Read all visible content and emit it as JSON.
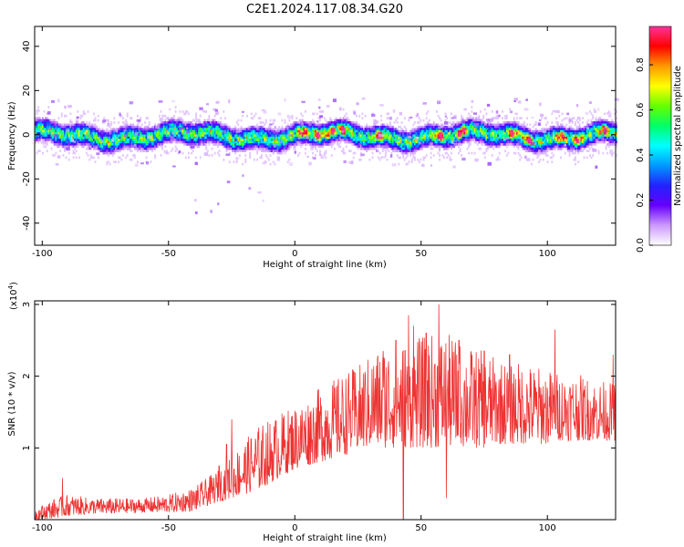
{
  "figure": {
    "title": "C2E1.2024.117.08.34.G20"
  },
  "chart_data": [
    {
      "type": "heatmap",
      "xlabel": "Height of straight line (km)",
      "ylabel": "Frequency (Hz)",
      "xlim": [
        -103,
        127
      ],
      "ylim": [
        -50,
        49
      ],
      "x_ticks": [
        -100,
        -50,
        0,
        50,
        100
      ],
      "y_ticks": [
        -40,
        -20,
        0,
        20,
        40
      ],
      "colorbar": {
        "label": "Normalized spectral amplitude",
        "range": [
          0,
          0.97
        ],
        "ticks": [
          0.0,
          0.2,
          0.4,
          0.6,
          0.8
        ],
        "colormap": [
          "#ffffff",
          "#cc99ff",
          "#6600ff",
          "#2222ff",
          "#0099ff",
          "#00ffff",
          "#00ff66",
          "#66ff00",
          "#ffff00",
          "#ff9900",
          "#ff0000",
          "#ff3399"
        ]
      },
      "signal": {
        "center_frequency": 0,
        "band_halfwidth_hz": 5,
        "scatter_extent_hz": [
          -40,
          17
        ],
        "hotspots_x": [
          3,
          9,
          14,
          19,
          33,
          57,
          66,
          86,
          92,
          105,
          112,
          122
        ]
      }
    },
    {
      "type": "line",
      "xlabel": "Height of straight line (km)",
      "ylabel": "SNR (10 * v/v)",
      "y_multiplier": "(x10",
      "y_multiplier_exp": "4",
      "y_multiplier_close": ")",
      "xlim": [
        -103,
        127
      ],
      "ylim": [
        0,
        3.05
      ],
      "x_ticks": [
        -100,
        -50,
        0,
        50,
        100
      ],
      "y_ticks": [
        1,
        2,
        3
      ],
      "color": "#ee3333",
      "series": [
        {
          "x": [
            -103,
            -95,
            -90,
            -80,
            -70,
            -60,
            -50,
            -40,
            -30,
            -25,
            -20,
            -15,
            -10,
            -5,
            0,
            5,
            10,
            15,
            20,
            25,
            30,
            35,
            40,
            45,
            50,
            55,
            60,
            65,
            70,
            75,
            80,
            85,
            90,
            95,
            100,
            105,
            110,
            115,
            120,
            127
          ],
          "y_low": [
            0.0,
            0.02,
            0.05,
            0.08,
            0.08,
            0.1,
            0.1,
            0.12,
            0.25,
            0.3,
            0.35,
            0.4,
            0.5,
            0.6,
            0.7,
            0.75,
            0.8,
            0.85,
            0.9,
            0.95,
            1.0,
            1.0,
            1.0,
            1.0,
            1.0,
            1.0,
            1.0,
            1.0,
            1.0,
            1.0,
            1.05,
            1.05,
            1.05,
            1.05,
            1.05,
            1.1,
            1.1,
            1.1,
            1.1,
            1.1
          ],
          "y_high": [
            0.15,
            0.3,
            0.35,
            0.3,
            0.3,
            0.3,
            0.35,
            0.45,
            0.7,
            0.9,
            1.1,
            1.3,
            1.4,
            1.5,
            1.6,
            1.7,
            1.85,
            1.95,
            2.05,
            2.15,
            2.3,
            2.45,
            2.5,
            2.5,
            2.55,
            2.6,
            2.6,
            2.5,
            2.4,
            2.35,
            2.25,
            2.2,
            2.2,
            2.15,
            2.1,
            2.05,
            2.05,
            2.0,
            1.95,
            1.9
          ],
          "peaks": [
            [
              -92,
              0.58
            ],
            [
              -30,
              0.75
            ],
            [
              -27,
              1.05
            ],
            [
              -25,
              1.4
            ],
            [
              35,
              2.35
            ],
            [
              40,
              2.5
            ],
            [
              45,
              2.85
            ],
            [
              47,
              2.7
            ],
            [
              57,
              3.0
            ],
            [
              52,
              2.6
            ],
            [
              65,
              2.5
            ],
            [
              75,
              2.35
            ],
            [
              85,
              2.3
            ],
            [
              103,
              2.65
            ],
            [
              126,
              2.3
            ]
          ],
          "dips": [
            [
              43,
              0.0
            ],
            [
              60,
              0.3
            ],
            [
              -10,
              0.6
            ]
          ]
        }
      ]
    }
  ]
}
